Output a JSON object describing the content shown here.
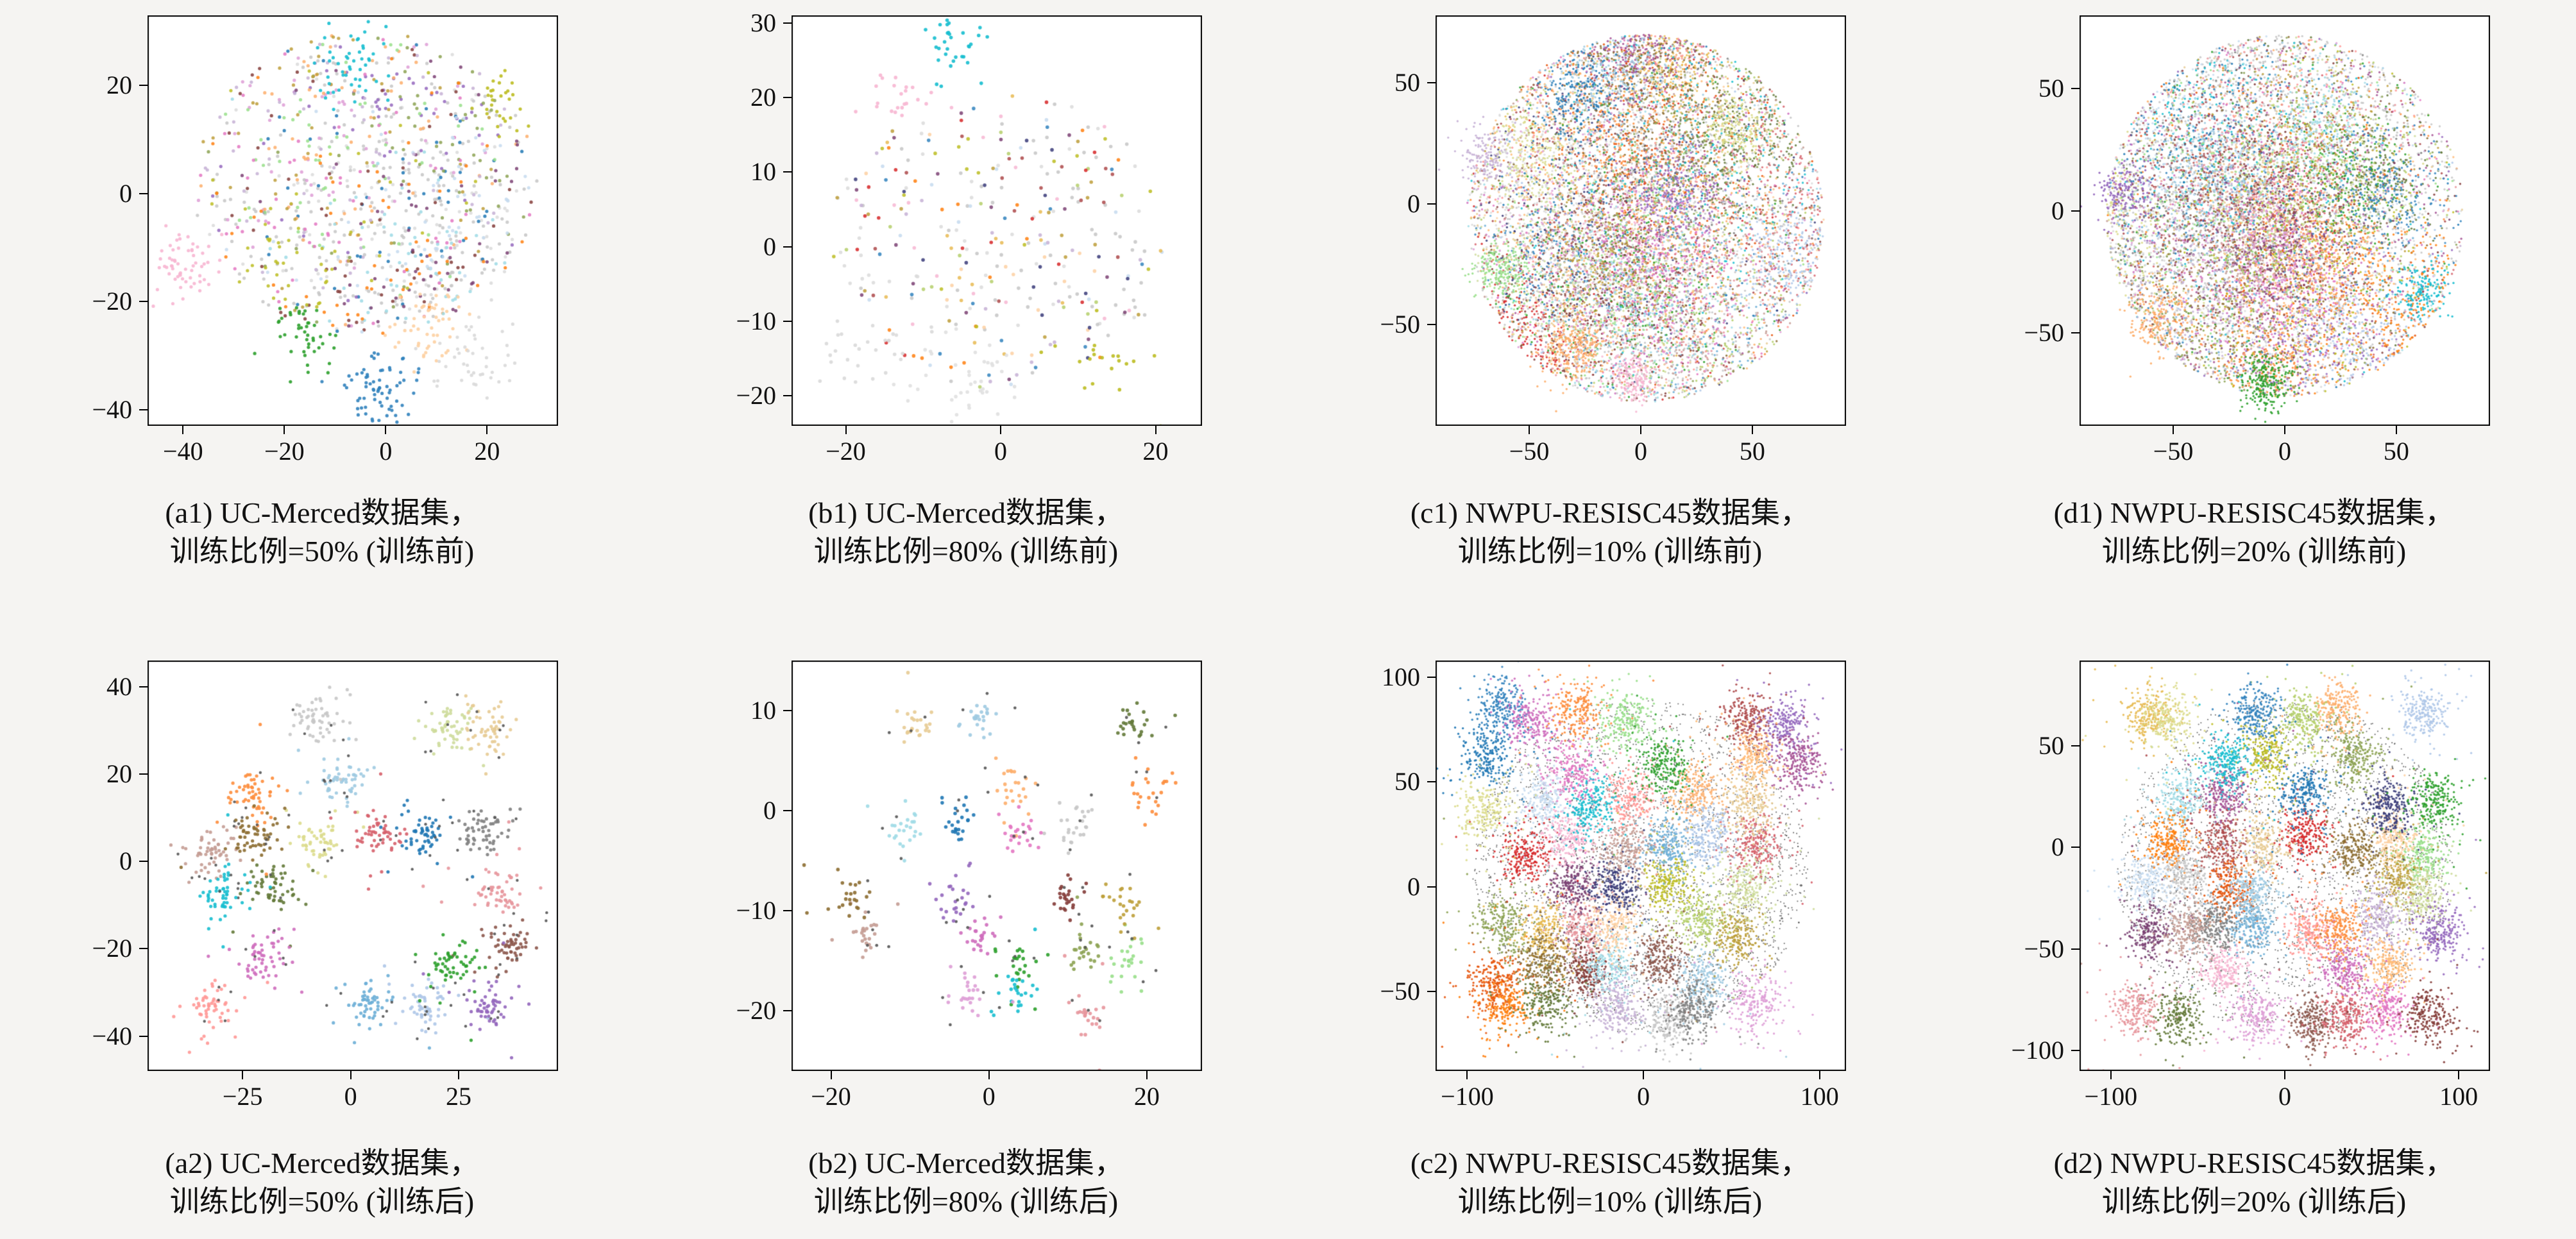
{
  "style": {
    "page_bg": "#f5f4f2",
    "plot_bg": "#ffffff",
    "axis_color": "#000000",
    "text_color": "#111111"
  },
  "palette": [
    "#aec7e8",
    "#1f77b4",
    "#ff7f0e",
    "#ffbb78",
    "#2ca02c",
    "#98df8a",
    "#d62728",
    "#ff9896",
    "#9467bd",
    "#c5b0d5",
    "#8c564b",
    "#c49c94",
    "#e377c2",
    "#f7b6d2",
    "#7f7f7f",
    "#c7c7c7",
    "#bcbd22",
    "#dbdb8d",
    "#17becf",
    "#9edae5",
    "#393b79",
    "#637939",
    "#8ca252",
    "#b5cf6b",
    "#cedb9c",
    "#8c6d31",
    "#bd9e39",
    "#e7ba52",
    "#e7cb94",
    "#843c39",
    "#ad494a",
    "#d6616b",
    "#e7969c",
    "#7b4173",
    "#a55194",
    "#ce6dbd",
    "#de9ed6",
    "#3182bd",
    "#6baed6",
    "#9ecae1",
    "#c6dbef",
    "#e6550d",
    "#fd8d3c",
    "#fdae6b",
    "#fdd0a2"
  ],
  "chart_data": [
    {
      "id": "a1",
      "type": "scatter",
      "dataset": "UC-Merced",
      "train_ratio": "50%",
      "stage": "训练前",
      "n_classes": 21,
      "caption_line1": "(a1) UC-Merced数据集，",
      "caption_line2": "训练比例=50% (训练前)",
      "xlim": [
        -47,
        34
      ],
      "ylim": [
        -43,
        33
      ],
      "xticks": [
        -40,
        -20,
        0,
        20
      ],
      "xtick_labels": [
        "−40",
        "−20",
        "0",
        "20"
      ],
      "yticks": [
        -40,
        -20,
        0,
        20
      ],
      "ytick_labels": [
        "−40",
        "−20",
        "0",
        "20"
      ],
      "scatter": {
        "mode": "mixed",
        "classes": 21,
        "per_class": 55,
        "blob": {
          "cx": -4,
          "cy": 2,
          "rx": 34,
          "ry": 28
        },
        "spread": 13,
        "uniform": 0.25,
        "grays": 5,
        "point_r": 2.6,
        "seed": 11,
        "satellites": [
          {
            "x": -40,
            "y": -14,
            "n": 60,
            "sigma": 3.2,
            "color": "#f7b6d2"
          },
          {
            "x": -1,
            "y": -36,
            "n": 70,
            "sigma": 4,
            "color": "#3182bd"
          },
          {
            "x": -16,
            "y": -26,
            "n": 45,
            "sigma": 3,
            "color": "#2ca02c"
          },
          {
            "x": 9,
            "y": -25,
            "n": 55,
            "sigma": 4,
            "color": "#fdd0a2"
          },
          {
            "x": 17,
            "y": -31,
            "n": 45,
            "sigma": 4.5,
            "color": "#d9d9d9"
          },
          {
            "x": -7,
            "y": 24,
            "n": 50,
            "sigma": 3.5,
            "color": "#17becf"
          },
          {
            "x": 23,
            "y": 17,
            "n": 30,
            "sigma": 3,
            "color": "#bcbd22"
          }
        ]
      }
    },
    {
      "id": "b1",
      "type": "scatter",
      "dataset": "UC-Merced",
      "train_ratio": "80%",
      "stage": "训练前",
      "n_classes": 21,
      "caption_line1": "(b1) UC-Merced数据集，",
      "caption_line2": "训练比例=80% (训练前)",
      "xlim": [
        -27,
        26
      ],
      "ylim": [
        -24,
        31
      ],
      "xticks": [
        -20,
        0,
        20
      ],
      "xtick_labels": [
        "−20",
        "0",
        "20"
      ],
      "yticks": [
        -20,
        -10,
        0,
        10,
        20,
        30
      ],
      "ytick_labels": [
        "−20",
        "−10",
        "0",
        "10",
        "20",
        "30"
      ],
      "scatter": {
        "mode": "mixed",
        "classes": 21,
        "per_class": 16,
        "blob": {
          "cx": 0,
          "cy": 1,
          "rx": 22,
          "ry": 20
        },
        "spread": 11,
        "uniform": 0.35,
        "grays": 7,
        "point_r": 2.8,
        "seed": 22,
        "satellites": [
          {
            "x": -6,
            "y": 27,
            "n": 32,
            "sigma": 2.2,
            "color": "#17becf"
          },
          {
            "x": -13,
            "y": 20,
            "n": 22,
            "sigma": 2,
            "color": "#f7b6d2"
          },
          {
            "x": -5,
            "y": -19,
            "n": 45,
            "sigma": 4,
            "color": "#e0e0e0"
          },
          {
            "x": -17,
            "y": -13,
            "n": 28,
            "sigma": 3,
            "color": "#d9d9d9"
          },
          {
            "x": 13,
            "y": -15,
            "n": 20,
            "sigma": 3,
            "color": "#bcbd22"
          }
        ]
      }
    },
    {
      "id": "c1",
      "type": "scatter",
      "dataset": "NWPU-RESISC45",
      "train_ratio": "10%",
      "stage": "训练前",
      "n_classes": 45,
      "caption_line1": "(c1) NWPU-RESISC45数据集，",
      "caption_line2": "训练比例=10% (训练前)",
      "xlim": [
        -92,
        92
      ],
      "ylim": [
        -92,
        78
      ],
      "xticks": [
        -50,
        0,
        50
      ],
      "xtick_labels": [
        "−50",
        "0",
        "50"
      ],
      "yticks": [
        -50,
        0,
        50
      ],
      "ytick_labels": [
        "−50",
        "0",
        "50"
      ],
      "scatter": {
        "mode": "mixed",
        "classes": 45,
        "per_class": 280,
        "blob": {
          "cx": 2,
          "cy": -6,
          "rx": 80,
          "ry": 76
        },
        "spread": 20,
        "uniform": 0.2,
        "grays": 5,
        "point_r": 1.7,
        "seed": 33,
        "satellites": [
          {
            "x": -30,
            "y": -60,
            "n": 260,
            "sigma": 7,
            "color": "#fdae6b"
          },
          {
            "x": -62,
            "y": -28,
            "n": 180,
            "sigma": 6,
            "color": "#98df8a"
          },
          {
            "x": -4,
            "y": -72,
            "n": 160,
            "sigma": 5,
            "color": "#f7b6d2"
          },
          {
            "x": 42,
            "y": 32,
            "n": 200,
            "sigma": 8,
            "color": "#dbdb8d"
          },
          {
            "x": -70,
            "y": 20,
            "n": 150,
            "sigma": 6,
            "color": "#c5b0d5"
          }
        ]
      }
    },
    {
      "id": "d1",
      "type": "scatter",
      "dataset": "NWPU-RESISC45",
      "train_ratio": "20%",
      "stage": "训练前",
      "n_classes": 45,
      "caption_line1": "(d1) NWPU-RESISC45数据集，",
      "caption_line2": "训练比例=20% (训练前)",
      "xlim": [
        -92,
        92
      ],
      "ylim": [
        -88,
        80
      ],
      "xticks": [
        -50,
        0,
        50
      ],
      "xtick_labels": [
        "−50",
        "0",
        "50"
      ],
      "yticks": [
        -50,
        0,
        50
      ],
      "ytick_labels": [
        "−50",
        "0",
        "50"
      ],
      "scatter": {
        "mode": "mixed",
        "classes": 45,
        "per_class": 280,
        "blob": {
          "cx": 0,
          "cy": -2,
          "rx": 80,
          "ry": 74
        },
        "spread": 20,
        "uniform": 0.2,
        "grays": 5,
        "point_r": 1.7,
        "seed": 44,
        "satellites": [
          {
            "x": -8,
            "y": -70,
            "n": 230,
            "sigma": 6,
            "color": "#2ca02c"
          },
          {
            "x": -56,
            "y": -44,
            "n": 200,
            "sigma": 7,
            "color": "#fdae6b"
          },
          {
            "x": -72,
            "y": 8,
            "n": 150,
            "sigma": 6,
            "color": "#9467bd"
          },
          {
            "x": 62,
            "y": -34,
            "n": 150,
            "sigma": 6,
            "color": "#17becf"
          }
        ]
      }
    },
    {
      "id": "a2",
      "type": "scatter",
      "dataset": "UC-Merced",
      "train_ratio": "50%",
      "stage": "训练后",
      "n_classes": 21,
      "caption_line1": "(a2) UC-Merced数据集，",
      "caption_line2": "训练比例=50% (训练后)",
      "xlim": [
        -47,
        48
      ],
      "ylim": [
        -48,
        46
      ],
      "xticks": [
        -25,
        0,
        25
      ],
      "xtick_labels": [
        "−25",
        "0",
        "25"
      ],
      "yticks": [
        -40,
        -20,
        0,
        20,
        40
      ],
      "ytick_labels": [
        "−40",
        "−20",
        "0",
        "20",
        "40"
      ],
      "scatter": {
        "mode": "tight",
        "classes": 21,
        "per_class": 55,
        "sigma": 2.6,
        "point_r": 2.6,
        "seed": 55,
        "dark_per_cluster": 5
      }
    },
    {
      "id": "b2",
      "type": "scatter",
      "dataset": "UC-Merced",
      "train_ratio": "80%",
      "stage": "训练后",
      "n_classes": 21,
      "caption_line1": "(b2) UC-Merced数据集，",
      "caption_line2": "训练比例=80% (训练后)",
      "xlim": [
        -25,
        27
      ],
      "ylim": [
        -26,
        15
      ],
      "xticks": [
        -20,
        0,
        20
      ],
      "xtick_labels": [
        "−20",
        "0",
        "20"
      ],
      "yticks": [
        -20,
        -10,
        0,
        10
      ],
      "ytick_labels": [
        "−20",
        "−10",
        "0",
        "10"
      ],
      "scatter": {
        "mode": "tight",
        "classes": 21,
        "per_class": 24,
        "sigma": 1.1,
        "point_r": 2.8,
        "seed": 66,
        "dark_per_cluster": 3
      }
    },
    {
      "id": "c2",
      "type": "scatter",
      "dataset": "NWPU-RESISC45",
      "train_ratio": "10%",
      "stage": "训练后",
      "n_classes": 45,
      "caption_line1": "(c2) NWPU-RESISC45数据集，",
      "caption_line2": "训练比例=10% (训练后)",
      "xlim": [
        -118,
        115
      ],
      "ylim": [
        -88,
        108
      ],
      "xticks": [
        -100,
        0,
        100
      ],
      "xtick_labels": [
        "−100",
        "0",
        "100"
      ],
      "yticks": [
        -50,
        0,
        50,
        100
      ],
      "ytick_labels": [
        "−50",
        "0",
        "50",
        "100"
      ],
      "scatter": {
        "mode": "tight",
        "classes": 45,
        "per_class": 230,
        "sigma": 7,
        "point_r": 1.7,
        "seed": 77,
        "dark_per_cluster": 0,
        "noise": {
          "n": 2600,
          "color": "#4a4a4a",
          "r": 1.1
        }
      }
    },
    {
      "id": "d2",
      "type": "scatter",
      "dataset": "NWPU-RESISC45",
      "train_ratio": "20%",
      "stage": "训练后",
      "n_classes": 45,
      "caption_line1": "(d2) NWPU-RESISC45数据集，",
      "caption_line2": "训练比例=20% (训练后)",
      "xlim": [
        -118,
        118
      ],
      "ylim": [
        -110,
        92
      ],
      "xticks": [
        -100,
        0,
        100
      ],
      "xtick_labels": [
        "−100",
        "0",
        "100"
      ],
      "yticks": [
        -100,
        -50,
        0,
        50
      ],
      "ytick_labels": [
        "−100",
        "−50",
        "0",
        "50"
      ],
      "scatter": {
        "mode": "tight",
        "classes": 45,
        "per_class": 230,
        "sigma": 6.8,
        "point_r": 1.7,
        "seed": 88,
        "dark_per_cluster": 0,
        "noise": {
          "n": 2300,
          "color": "#4a4a4a",
          "r": 1.1
        }
      }
    }
  ]
}
